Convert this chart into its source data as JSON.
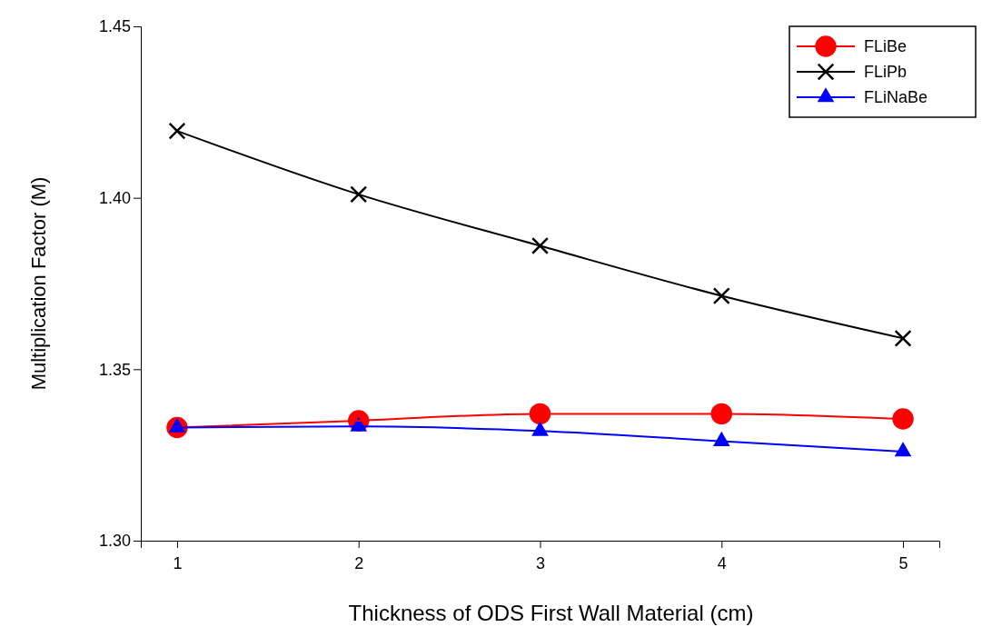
{
  "chart_data": {
    "type": "line",
    "xlabel": "Thickness of ODS First Wall Material (cm)",
    "ylabel": "Multiplication Factor (M)",
    "x": [
      1,
      2,
      3,
      4,
      5
    ],
    "xlim": [
      0.8,
      5.2
    ],
    "xticks": [
      1,
      2,
      3,
      4,
      5
    ],
    "ylim": [
      1.3,
      1.45
    ],
    "yticks": [
      {
        "value": 1.3,
        "label": "1.30"
      },
      {
        "value": 1.35,
        "label": "1.35"
      },
      {
        "value": 1.4,
        "label": "1.40"
      },
      {
        "value": 1.45,
        "label": "1.45"
      }
    ],
    "grid": false,
    "legend": "top right",
    "series": [
      {
        "name": "FLiBe",
        "color": "#ff0000",
        "marker": "circle",
        "values": [
          1.333,
          1.335,
          1.337,
          1.337,
          1.3355
        ]
      },
      {
        "name": "FLiPb",
        "color": "#000000",
        "marker": "cross",
        "values": [
          1.4195,
          1.401,
          1.386,
          1.3714,
          1.359
        ]
      },
      {
        "name": "FLiNaBe",
        "color": "#0000ff",
        "marker": "triangle",
        "values": [
          1.333,
          1.3333,
          1.332,
          1.329,
          1.326
        ]
      }
    ]
  }
}
